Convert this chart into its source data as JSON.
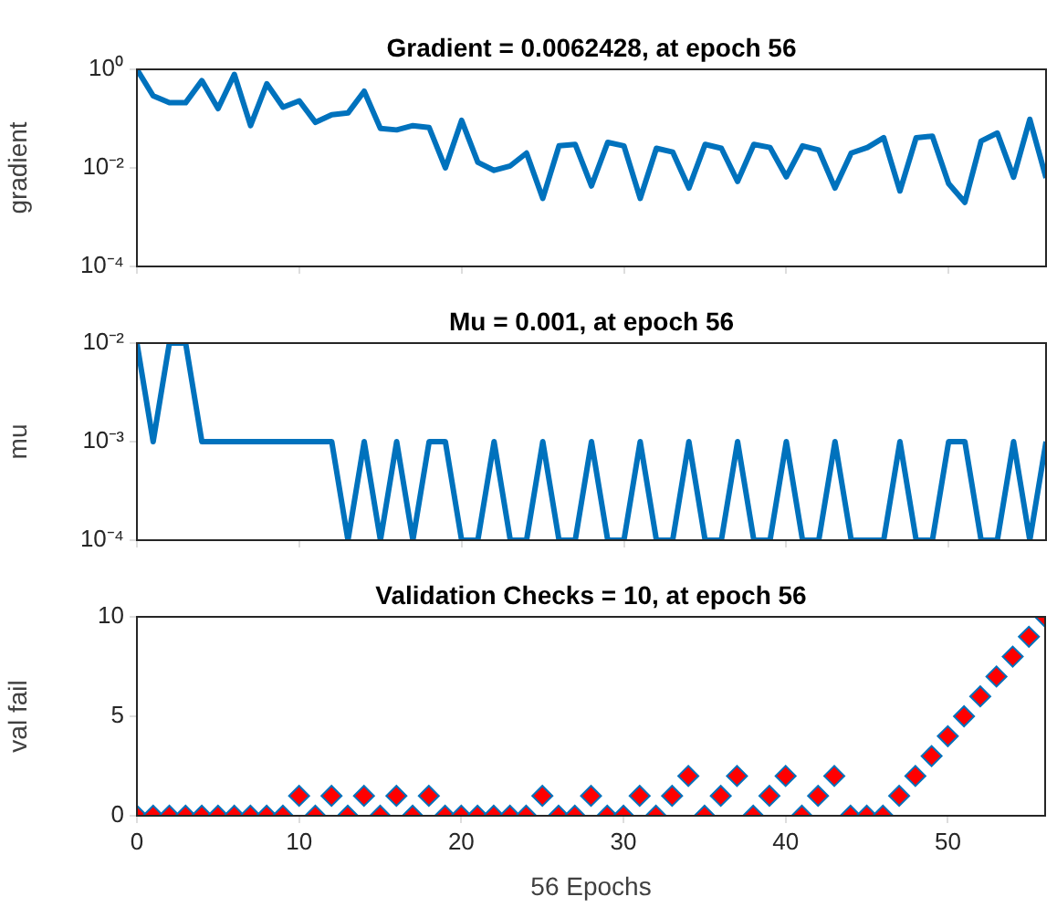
{
  "chart_data": [
    {
      "type": "line",
      "title": "Gradient = 0.0062428, at epoch 56",
      "ylabel": "gradient",
      "log": "y",
      "grid": false,
      "tick_labels": "y",
      "line_style": "solid",
      "marker": "none",
      "x": [
        0,
        1,
        2,
        3,
        4,
        5,
        6,
        7,
        8,
        9,
        10,
        11,
        12,
        13,
        14,
        15,
        16,
        17,
        18,
        19,
        20,
        21,
        22,
        23,
        24,
        25,
        26,
        27,
        28,
        29,
        30,
        31,
        32,
        33,
        34,
        35,
        36,
        37,
        38,
        39,
        40,
        41,
        42,
        43,
        44,
        45,
        46,
        47,
        48,
        49,
        50,
        51,
        52,
        53,
        54,
        55,
        56
      ],
      "series": [
        {
          "color": "#0072bd",
          "values": [
            1,
            0.29,
            0.21,
            0.21,
            0.59,
            0.16,
            0.79,
            0.072,
            0.51,
            0.17,
            0.23,
            0.084,
            0.12,
            0.13,
            0.36,
            0.063,
            0.059,
            0.072,
            0.066,
            0.01,
            0.092,
            0.013,
            0.0089,
            0.011,
            0.02,
            0.0024,
            0.028,
            0.03,
            0.0043,
            0.033,
            0.028,
            0.0024,
            0.025,
            0.021,
            0.0039,
            0.03,
            0.025,
            0.0053,
            0.03,
            0.026,
            0.0066,
            0.028,
            0.023,
            0.0039,
            0.02,
            0.026,
            0.041,
            0.0034,
            0.041,
            0.044,
            0.0048,
            0.002,
            0.035,
            0.051,
            0.0065,
            0.097,
            0.0062428
          ]
        }
      ],
      "xlim": [
        0,
        56
      ],
      "xticks": [
        0,
        10,
        20,
        30,
        40,
        50
      ],
      "ylim": [
        0.0001,
        1
      ],
      "yticks": [
        {
          "value": 0.0001,
          "label": "10⁻⁴"
        },
        {
          "value": 0.01,
          "label": "10⁻²"
        },
        {
          "value": 1,
          "label": "10⁰"
        }
      ]
    },
    {
      "type": "line",
      "title": "Mu = 0.001, at epoch 56",
      "ylabel": "mu",
      "log": "y",
      "grid": false,
      "tick_labels": "y",
      "line_style": "solid",
      "marker": "none",
      "x": [
        0,
        1,
        2,
        3,
        4,
        5,
        6,
        7,
        8,
        9,
        10,
        11,
        12,
        13,
        14,
        15,
        16,
        17,
        18,
        19,
        20,
        21,
        22,
        23,
        24,
        25,
        26,
        27,
        28,
        29,
        30,
        31,
        32,
        33,
        34,
        35,
        36,
        37,
        38,
        39,
        40,
        41,
        42,
        43,
        44,
        45,
        46,
        47,
        48,
        49,
        50,
        51,
        52,
        53,
        54,
        55,
        56
      ],
      "series": [
        {
          "color": "#0072bd",
          "values": [
            0.01,
            0.001,
            0.01,
            0.01,
            0.001,
            0.001,
            0.001,
            0.001,
            0.001,
            0.001,
            0.001,
            0.001,
            0.001,
            0.0001,
            0.001,
            0.0001,
            0.001,
            0.0001,
            0.001,
            0.001,
            0.0001,
            0.0001,
            0.001,
            0.0001,
            0.0001,
            0.001,
            0.0001,
            0.0001,
            0.001,
            0.0001,
            0.0001,
            0.001,
            0.0001,
            0.0001,
            0.001,
            0.0001,
            0.0001,
            0.001,
            0.0001,
            0.0001,
            0.001,
            0.0001,
            0.0001,
            0.001,
            0.0001,
            0.0001,
            0.0001,
            0.001,
            0.0001,
            0.0001,
            0.001,
            0.001,
            0.0001,
            0.0001,
            0.001,
            0.0001,
            0.001
          ]
        }
      ],
      "xlim": [
        0,
        56
      ],
      "xticks": [
        0,
        10,
        20,
        30,
        40,
        50
      ],
      "ylim": [
        0.0001,
        0.01
      ],
      "yticks": [
        {
          "value": 0.0001,
          "label": "10⁻⁴"
        },
        {
          "value": 0.001,
          "label": "10⁻³"
        },
        {
          "value": 0.01,
          "label": "10⁻²"
        }
      ]
    },
    {
      "type": "scatter",
      "title": "Validation Checks = 10, at epoch 56",
      "xlabel": "56 Epochs",
      "ylabel": "val fail",
      "grid": false,
      "marker": "diamond",
      "x": [
        0,
        1,
        2,
        3,
        4,
        5,
        6,
        7,
        8,
        9,
        10,
        11,
        12,
        13,
        14,
        15,
        16,
        17,
        18,
        19,
        20,
        21,
        22,
        23,
        24,
        25,
        26,
        27,
        28,
        29,
        30,
        31,
        32,
        33,
        34,
        35,
        36,
        37,
        38,
        39,
        40,
        41,
        42,
        43,
        44,
        45,
        46,
        47,
        48,
        49,
        50,
        51,
        52,
        53,
        54,
        55,
        56
      ],
      "series": [
        {
          "color": "#ff0000",
          "values": [
            0,
            0,
            0,
            0,
            0,
            0,
            0,
            0,
            0,
            0,
            1,
            0,
            1,
            0,
            1,
            0,
            1,
            0,
            1,
            0,
            0,
            0,
            0,
            0,
            0,
            1,
            0,
            0,
            1,
            0,
            0,
            1,
            0,
            1,
            2,
            0,
            1,
            2,
            0,
            1,
            2,
            0,
            1,
            2,
            0,
            0,
            0,
            1,
            2,
            3,
            4,
            5,
            6,
            7,
            8,
            9,
            10
          ]
        }
      ],
      "xlim": [
        0,
        56
      ],
      "xticks": [
        0,
        10,
        20,
        30,
        40,
        50
      ],
      "ylim": [
        0,
        10
      ],
      "yticks": [
        0,
        5,
        10
      ]
    }
  ]
}
